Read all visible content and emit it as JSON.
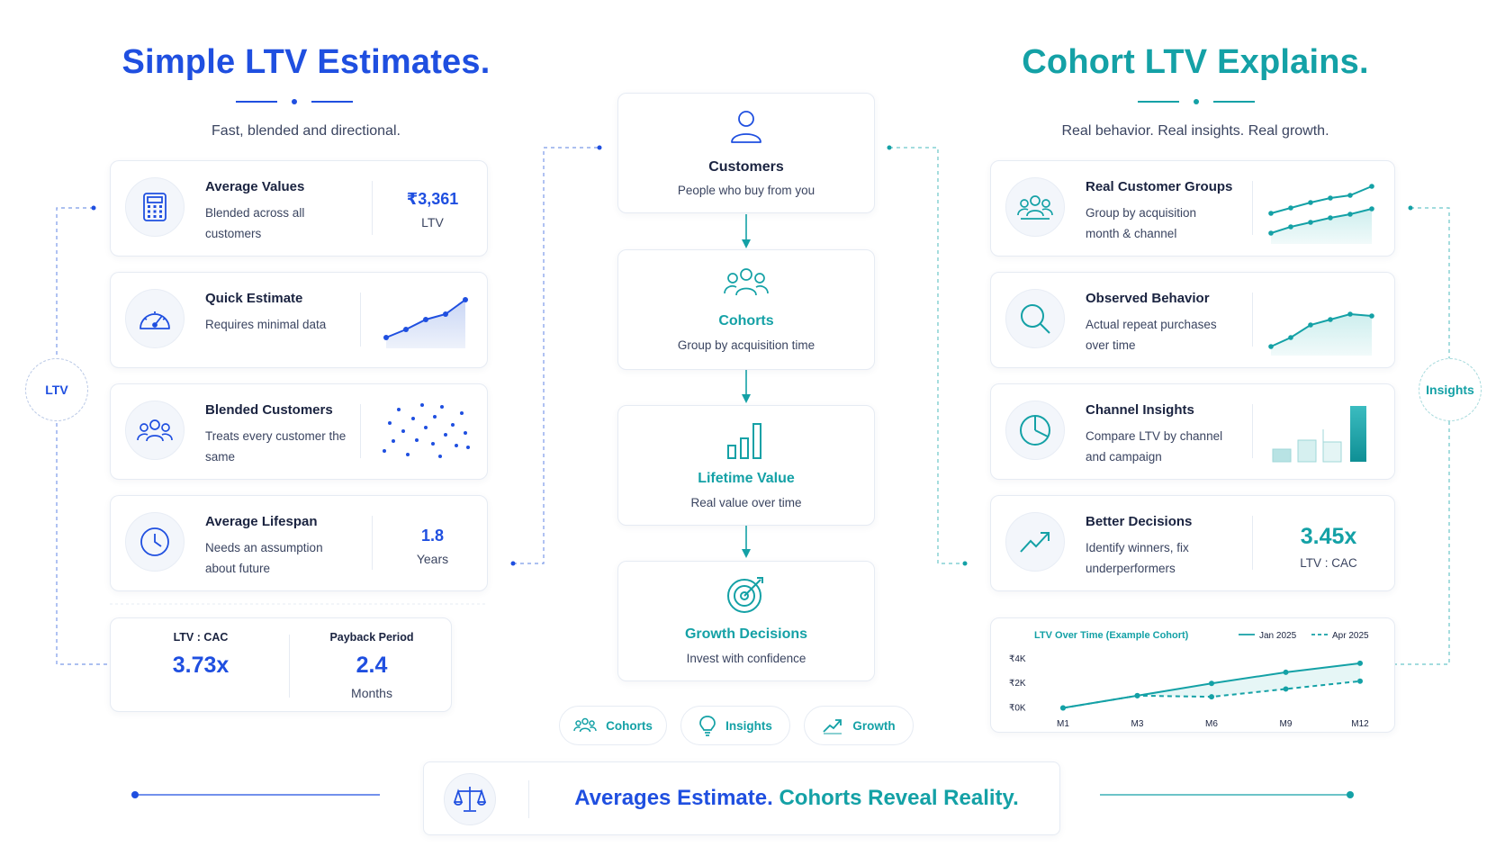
{
  "left": {
    "title": "Simple LTV Estimates.",
    "subtitle": "Fast, blended and directional.",
    "badge": "LTV",
    "cards": [
      {
        "title": "Average Values",
        "desc": "Blended across all customers",
        "metric": "₹3,361",
        "metric_sub": "LTV",
        "icon": "calculator-icon"
      },
      {
        "title": "Quick Estimate",
        "desc": "Requires minimal data",
        "icon": "speedometer-icon"
      },
      {
        "title": "Blended Customers",
        "desc": "Treats every customer the same",
        "icon": "users-icon"
      },
      {
        "title": "Average Lifespan",
        "desc": "Needs an assumption about future",
        "metric": "1.8",
        "metric_sub": "Years",
        "icon": "clock-icon"
      }
    ],
    "summary": {
      "ltv_cac_label": "LTV : CAC",
      "ltv_cac_value": "3.73x",
      "payback_label": "Payback Period",
      "payback_value": "2.4",
      "payback_unit": "Months"
    }
  },
  "right": {
    "title": "Cohort LTV Explains.",
    "subtitle": "Real behavior. Real insights. Real growth.",
    "badge": "Insights",
    "cards": [
      {
        "title": "Real Customer Groups",
        "desc": "Group by acquisition month & channel",
        "icon": "customer-groups-icon"
      },
      {
        "title": "Observed Behavior",
        "desc": "Actual repeat purchases over time",
        "icon": "magnifier-icon"
      },
      {
        "title": "Channel Insights",
        "desc": "Compare LTV by channel and campaign",
        "icon": "pie-chart-icon"
      },
      {
        "title": "Better Decisions",
        "desc": "Identify winners, fix underperformers",
        "metric": "3.45x",
        "metric_sub": "LTV : CAC",
        "icon": "trend-up-icon"
      }
    ]
  },
  "flow": [
    {
      "title": "Customers",
      "desc": "People who buy from you",
      "icon": "person-icon"
    },
    {
      "title": "Cohorts",
      "desc": "Group by acquisition time",
      "icon": "group-icon"
    },
    {
      "title": "Lifetime Value",
      "desc": "Real value over time",
      "icon": "bar-chart-icon"
    },
    {
      "title": "Growth Decisions",
      "desc": "Invest with confidence",
      "icon": "target-icon"
    }
  ],
  "pills": [
    {
      "label": "Cohorts",
      "icon": "group-icon"
    },
    {
      "label": "Insights",
      "icon": "lightbulb-icon"
    },
    {
      "label": "Growth",
      "icon": "trend-up-icon"
    }
  ],
  "bottom": {
    "part1": "Averages Estimate.",
    "part2": " Cohorts Reveal Reality.",
    "icon": "scale-icon"
  },
  "colors": {
    "blue": "#1f4fe0",
    "teal": "#14a1a6",
    "navy": "#1a2340"
  },
  "chart_data": {
    "type": "line",
    "title": "LTV Over Time (Example Cohort)",
    "categories": [
      "M1",
      "M3",
      "M6",
      "M9",
      "M12"
    ],
    "yticks": [
      "₹0K",
      "₹2K",
      "₹4K"
    ],
    "ylim": [
      0,
      5
    ],
    "legend_position": "top-right",
    "series": [
      {
        "name": "Jan 2025",
        "values": [
          0.2,
          1.3,
          2.4,
          3.4,
          4.2
        ],
        "style": "solid"
      },
      {
        "name": "Apr 2025",
        "values": [
          0.2,
          1.3,
          1.2,
          1.9,
          2.6
        ],
        "style": "dashed"
      }
    ]
  }
}
